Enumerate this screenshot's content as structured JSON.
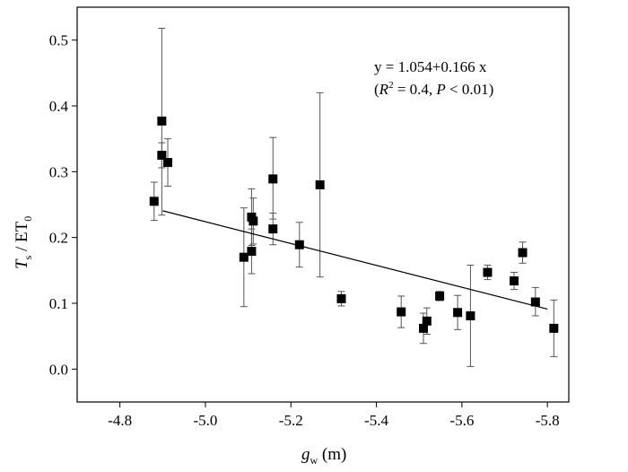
{
  "chart_data": {
    "type": "scatter",
    "title": "",
    "xlabel": {
      "var": "g",
      "sub": "w",
      "unit": " (m)"
    },
    "ylabel": {
      "var": "T",
      "sub": "s",
      "mid": " / ET",
      "sub2": "0"
    },
    "xlim": [
      -4.7,
      -5.85
    ],
    "ylim": [
      -0.05,
      0.55
    ],
    "x_ticks": [
      -4.8,
      -5.0,
      -5.2,
      -5.4,
      -5.6,
      -5.8
    ],
    "x_tick_labels": [
      "-4.8",
      "-5.0",
      "-5.2",
      "-5.4",
      "-5.6",
      "-5.8"
    ],
    "y_ticks": [
      0.0,
      0.1,
      0.2,
      0.3,
      0.4,
      0.5
    ],
    "y_tick_labels": [
      "0.0",
      "0.1",
      "0.2",
      "0.3",
      "0.4",
      "0.5"
    ],
    "grid": false,
    "points": [
      {
        "x": -4.88,
        "y": 0.255,
        "lo": 0.226,
        "hi": 0.284
      },
      {
        "x": -4.898,
        "y": 0.377,
        "lo": 0.234,
        "hi": 0.518
      },
      {
        "x": -4.898,
        "y": 0.325,
        "lo": 0.306,
        "hi": 0.344
      },
      {
        "x": -4.912,
        "y": 0.314,
        "lo": 0.278,
        "hi": 0.35
      },
      {
        "x": -5.09,
        "y": 0.17,
        "lo": 0.095,
        "hi": 0.245
      },
      {
        "x": -5.108,
        "y": 0.179,
        "lo": 0.145,
        "hi": 0.213
      },
      {
        "x": -5.108,
        "y": 0.231,
        "lo": 0.188,
        "hi": 0.274
      },
      {
        "x": -5.112,
        "y": 0.225,
        "lo": 0.19,
        "hi": 0.26
      },
      {
        "x": -5.158,
        "y": 0.289,
        "lo": 0.228,
        "hi": 0.352
      },
      {
        "x": -5.158,
        "y": 0.213,
        "lo": 0.189,
        "hi": 0.237
      },
      {
        "x": -5.22,
        "y": 0.189,
        "lo": 0.155,
        "hi": 0.223
      },
      {
        "x": -5.268,
        "y": 0.28,
        "lo": 0.14,
        "hi": 0.42
      },
      {
        "x": -5.318,
        "y": 0.107,
        "lo": 0.096,
        "hi": 0.118
      },
      {
        "x": -5.458,
        "y": 0.087,
        "lo": 0.063,
        "hi": 0.111
      },
      {
        "x": -5.51,
        "y": 0.062,
        "lo": 0.039,
        "hi": 0.085
      },
      {
        "x": -5.518,
        "y": 0.073,
        "lo": 0.053,
        "hi": 0.093
      },
      {
        "x": -5.548,
        "y": 0.111,
        "lo": 0.104,
        "hi": 0.118
      },
      {
        "x": -5.59,
        "y": 0.086,
        "lo": 0.06,
        "hi": 0.112
      },
      {
        "x": -5.62,
        "y": 0.081,
        "lo": 0.004,
        "hi": 0.158
      },
      {
        "x": -5.66,
        "y": 0.147,
        "lo": 0.136,
        "hi": 0.158
      },
      {
        "x": -5.722,
        "y": 0.134,
        "lo": 0.121,
        "hi": 0.147
      },
      {
        "x": -5.742,
        "y": 0.177,
        "lo": 0.161,
        "hi": 0.193
      },
      {
        "x": -5.772,
        "y": 0.102,
        "lo": 0.081,
        "hi": 0.124
      },
      {
        "x": -5.815,
        "y": 0.062,
        "lo": 0.019,
        "hi": 0.105
      }
    ],
    "fit": {
      "intercept": 1.054,
      "slope": 0.166,
      "x_range": [
        -4.9,
        -5.8
      ],
      "equation": "y = 1.054+0.166 x",
      "stats": {
        "r_var": "R",
        "r_sup": "2",
        "r_value": " = 0.4, ",
        "p_var": "P",
        "p_value": " < 0.01)",
        "open_paren": "("
      }
    }
  }
}
